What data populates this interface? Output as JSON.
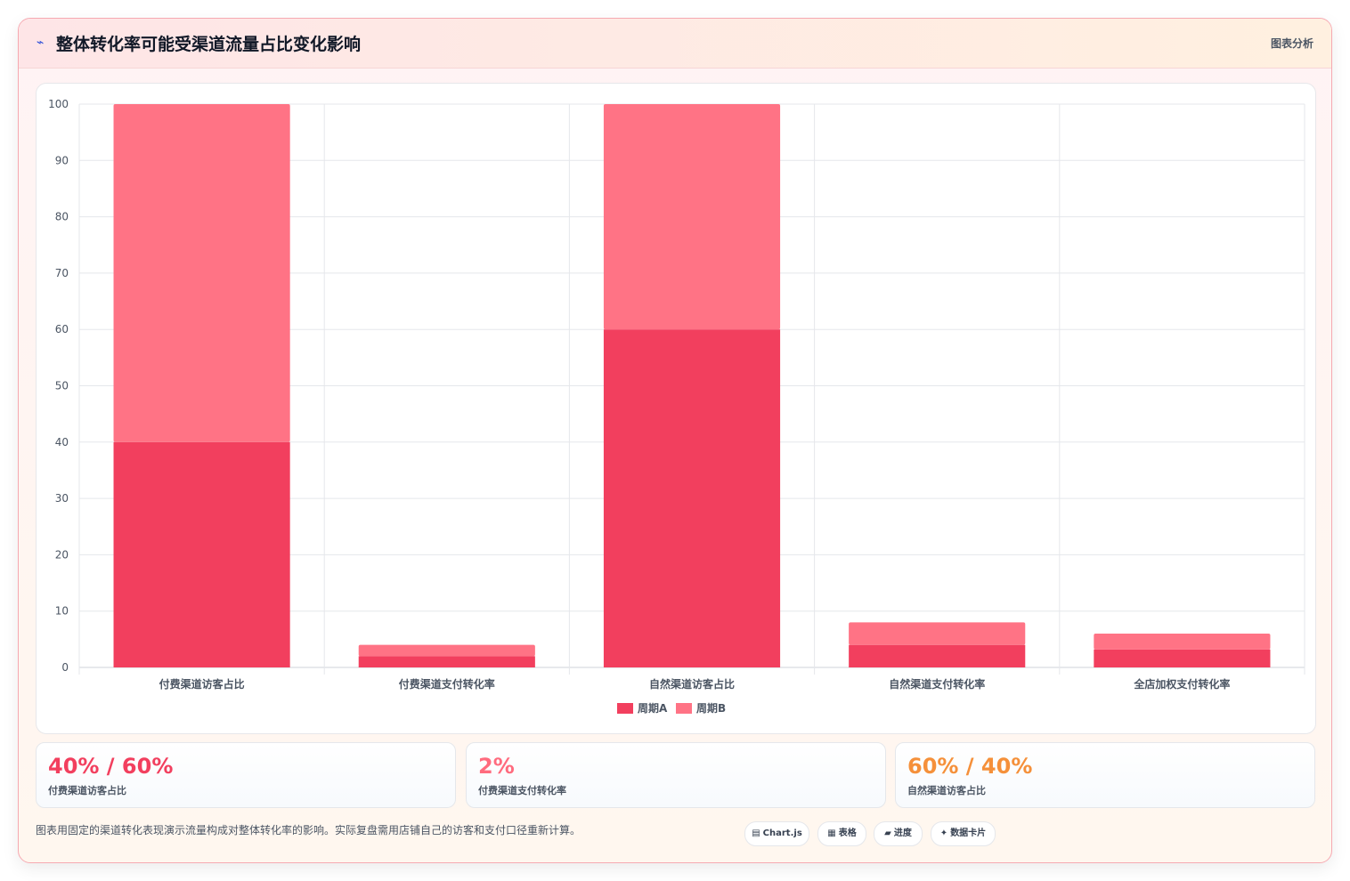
{
  "header": {
    "icon": "chart-spark-icon",
    "title": "整体转化率可能受渠道流量占比变化影响",
    "tag": "图表分析"
  },
  "chart_data": {
    "type": "bar",
    "stacked": true,
    "categories": [
      "付费渠道访客占比",
      "付费渠道支付转化率",
      "自然渠道访客占比",
      "自然渠道支付转化率",
      "全店加权支付转化率"
    ],
    "series": [
      {
        "name": "周期A",
        "color": "#f23f5e",
        "values": [
          40,
          2,
          60,
          4,
          3.2
        ]
      },
      {
        "name": "周期B",
        "color": "#ff7385",
        "values": [
          60,
          2,
          40,
          4,
          2.8
        ]
      }
    ],
    "ylim": [
      0,
      100
    ],
    "yticks": [
      "0",
      "10",
      "20",
      "30",
      "40",
      "50",
      "60",
      "70",
      "80",
      "90",
      "100"
    ],
    "grid": true,
    "legend": "bottom"
  },
  "stats": [
    {
      "value": "40% / 60%",
      "label": "付费渠道访客占比",
      "color": "#f23f5e"
    },
    {
      "value": "2%",
      "label": "付费渠道支付转化率",
      "color": "#ff6b7e"
    },
    {
      "value": "60% / 40%",
      "label": "自然渠道访客占比",
      "color": "#f5903a"
    }
  ],
  "footnote": "图表用固定的渠道转化表现演示流量构成对整体转化率的影响。实际复盘需用店铺自己的访客和支付口径重新计算。",
  "chips": [
    {
      "icon": "▤",
      "label": "Chart.js"
    },
    {
      "icon": "▦",
      "label": "表格"
    },
    {
      "icon": "▰",
      "label": "进度"
    },
    {
      "icon": "✦",
      "label": "数据卡片"
    }
  ]
}
